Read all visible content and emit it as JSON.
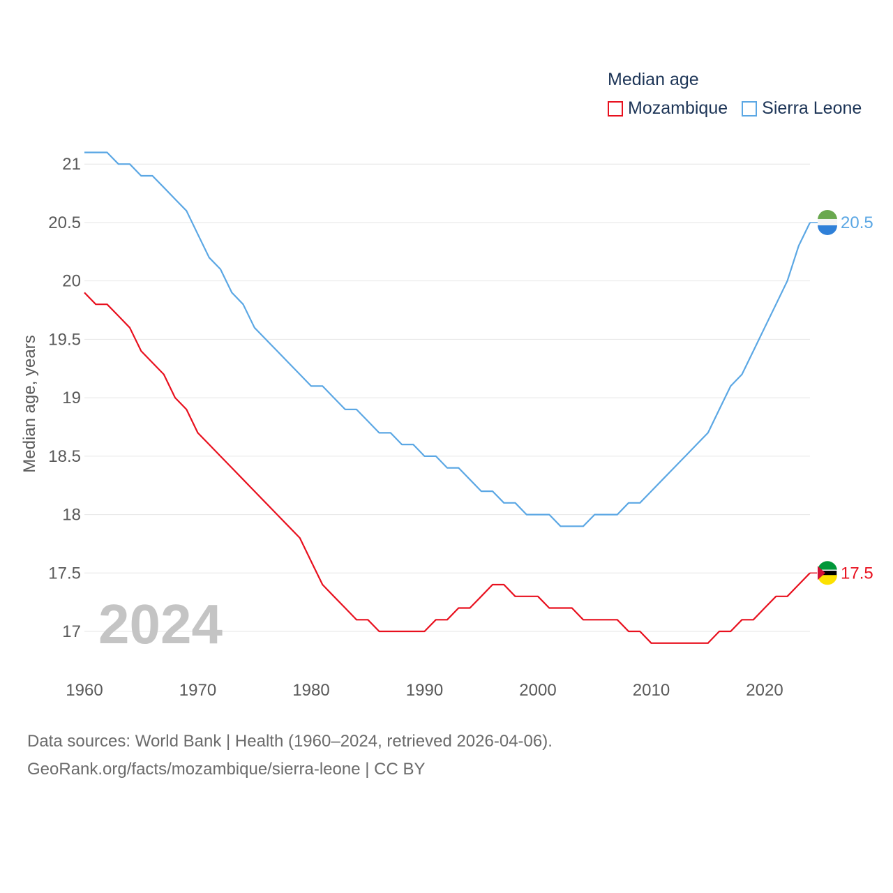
{
  "legend": {
    "title": "Median age",
    "items": [
      {
        "name": "Mozambique",
        "color": "#e8101e"
      },
      {
        "name": "Sierra Leone",
        "color": "#5ba7e4"
      }
    ]
  },
  "footer": {
    "line1": "Data sources: World Bank | Health (1960–2024, retrieved 2026-04-06).",
    "line2": "GeoRank.org/facts/mozambique/sierra-leone | CC BY"
  },
  "chart_data": {
    "type": "line",
    "title": "Median age",
    "xlabel": "",
    "ylabel": "Median age, years",
    "year_overlay": "2024",
    "x": [
      1960,
      1961,
      1962,
      1963,
      1964,
      1965,
      1966,
      1967,
      1968,
      1969,
      1970,
      1971,
      1972,
      1973,
      1974,
      1975,
      1976,
      1977,
      1978,
      1979,
      1980,
      1981,
      1982,
      1983,
      1984,
      1985,
      1986,
      1987,
      1988,
      1989,
      1990,
      1991,
      1992,
      1993,
      1994,
      1995,
      1996,
      1997,
      1998,
      1999,
      2000,
      2001,
      2002,
      2003,
      2004,
      2005,
      2006,
      2007,
      2008,
      2009,
      2010,
      2011,
      2012,
      2013,
      2014,
      2015,
      2016,
      2017,
      2018,
      2019,
      2020,
      2021,
      2022,
      2023,
      2024
    ],
    "xlim": [
      1960,
      2024
    ],
    "ylim": [
      16.6,
      21.3
    ],
    "x_ticks": [
      1960,
      1970,
      1980,
      1990,
      2000,
      2010,
      2020
    ],
    "y_ticks": [
      17,
      17.5,
      18,
      18.5,
      19,
      19.5,
      20,
      20.5,
      21
    ],
    "grid": true,
    "legend_position": "top-right",
    "series": [
      {
        "name": "Mozambique",
        "color": "#e8101e",
        "end_label": "17.5",
        "values": [
          19.9,
          19.8,
          19.8,
          19.7,
          19.6,
          19.4,
          19.3,
          19.2,
          19.0,
          18.9,
          18.7,
          18.6,
          18.5,
          18.4,
          18.3,
          18.2,
          18.1,
          18.0,
          17.9,
          17.8,
          17.6,
          17.4,
          17.3,
          17.2,
          17.1,
          17.1,
          17.0,
          17.0,
          17.0,
          17.0,
          17.0,
          17.1,
          17.1,
          17.2,
          17.2,
          17.3,
          17.4,
          17.4,
          17.3,
          17.3,
          17.3,
          17.2,
          17.2,
          17.2,
          17.1,
          17.1,
          17.1,
          17.1,
          17.0,
          17.0,
          16.9,
          16.9,
          16.9,
          16.9,
          16.9,
          16.9,
          17.0,
          17.0,
          17.1,
          17.1,
          17.2,
          17.3,
          17.3,
          17.4,
          17.5
        ]
      },
      {
        "name": "Sierra Leone",
        "color": "#5ba7e4",
        "end_label": "20.5",
        "values": [
          21.1,
          21.1,
          21.1,
          21.0,
          21.0,
          20.9,
          20.9,
          20.8,
          20.7,
          20.6,
          20.4,
          20.2,
          20.1,
          19.9,
          19.8,
          19.6,
          19.5,
          19.4,
          19.3,
          19.2,
          19.1,
          19.1,
          19.0,
          18.9,
          18.9,
          18.8,
          18.7,
          18.7,
          18.6,
          18.6,
          18.5,
          18.5,
          18.4,
          18.4,
          18.3,
          18.2,
          18.2,
          18.1,
          18.1,
          18.0,
          18.0,
          18.0,
          17.9,
          17.9,
          17.9,
          18.0,
          18.0,
          18.0,
          18.1,
          18.1,
          18.2,
          18.3,
          18.4,
          18.5,
          18.6,
          18.7,
          18.9,
          19.1,
          19.2,
          19.4,
          19.6,
          19.8,
          20.0,
          20.3,
          20.5
        ]
      }
    ]
  }
}
